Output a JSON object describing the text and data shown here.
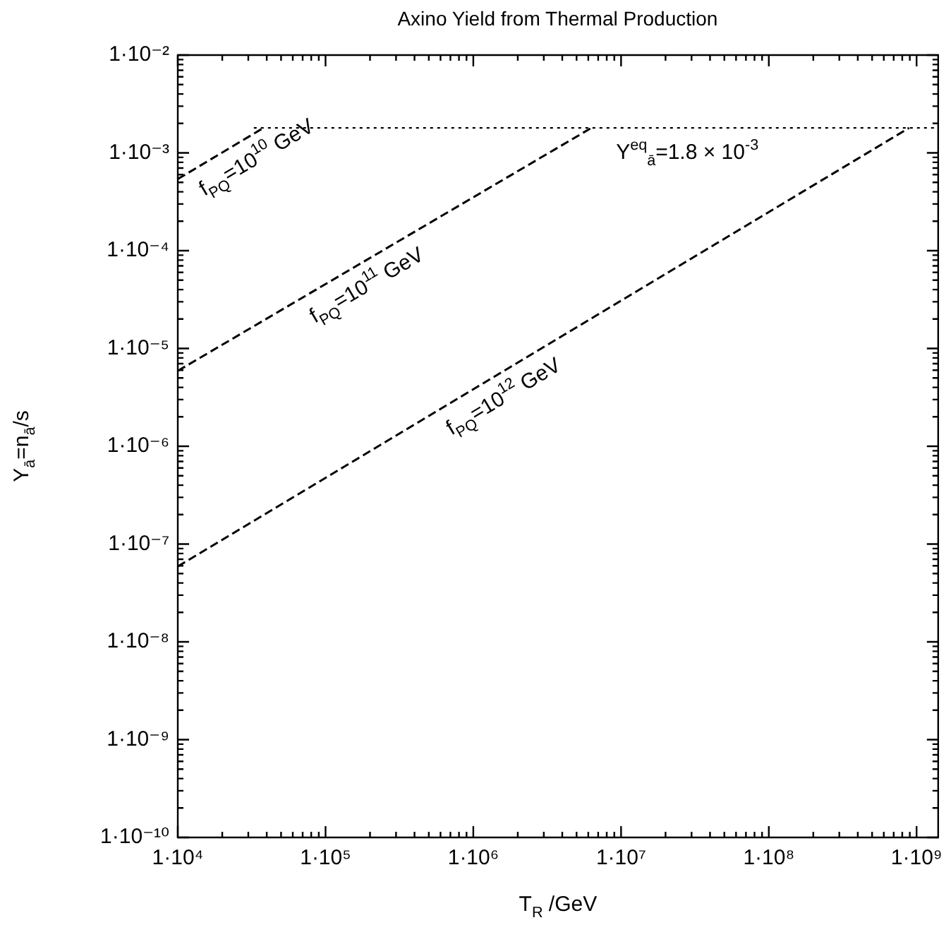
{
  "chart_data": {
    "type": "line",
    "title": "Axino Yield from Thermal Production",
    "xlabel": "T$_{R}$ /GeV",
    "ylabel": "Y$_{ā}$=n$_{ā}$/s",
    "log": "xy",
    "grid": false,
    "legend": false,
    "line_style": "dashed",
    "marker": "none",
    "xlim": [
      10000,
      1400000000
    ],
    "ylim": [
      1e-10,
      0.01
    ],
    "xticks": [
      {
        "value": 10000,
        "label": "1·10⁴"
      },
      {
        "value": 100000,
        "label": "1·10⁵"
      },
      {
        "value": 1000000,
        "label": "1·10⁶"
      },
      {
        "value": 10000000,
        "label": "1·10⁷"
      },
      {
        "value": 100000000,
        "label": "1·10⁸"
      },
      {
        "value": 1000000000,
        "label": "1·10⁹"
      }
    ],
    "yticks": [
      {
        "value": 1e-10,
        "label": "1·10⁻¹⁰"
      },
      {
        "value": 1e-09,
        "label": "1·10⁻⁹"
      },
      {
        "value": 1e-08,
        "label": "1·10⁻⁸"
      },
      {
        "value": 1e-07,
        "label": "1·10⁻⁷"
      },
      {
        "value": 1e-06,
        "label": "1·10⁻⁶"
      },
      {
        "value": 1e-05,
        "label": "1·10⁻⁵"
      },
      {
        "value": 0.0001,
        "label": "1·10⁻⁴"
      },
      {
        "value": 0.001,
        "label": "1·10⁻³"
      },
      {
        "value": 0.01,
        "label": "1·10⁻²"
      }
    ],
    "series": [
      {
        "name": "f$_{PQ}$=10$^{10}$ GeV",
        "color": "#000000",
        "x": [
          10000,
          38000
        ],
        "values": [
          0.00054,
          0.0018
        ]
      },
      {
        "name": "f$_{PQ}$=10$^{11}$ GeV",
        "color": "#000000",
        "x": [
          10000,
          6300000
        ],
        "values": [
          5.9e-06,
          0.0018
        ]
      },
      {
        "name": "f$_{PQ}$=10$^{12}$ GeV",
        "color": "#000000",
        "x": [
          10000,
          890000000
        ],
        "values": [
          5.9e-08,
          0.0018
        ]
      }
    ],
    "ref_lines": [
      {
        "axis": "y",
        "value": 0.0018,
        "label": "Y$^{eq}$$_{ā}$=1.8 × 10$^{-3}$",
        "color": "#000000",
        "line_style": "dotted"
      }
    ]
  }
}
